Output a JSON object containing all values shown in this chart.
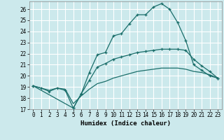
{
  "xlabel": "Humidex (Indice chaleur)",
  "bg_color": "#cce9ec",
  "grid_color": "#c0d8dc",
  "line_color": "#1a6e6a",
  "xlim_min": -0.5,
  "xlim_max": 23.5,
  "ylim_min": 17,
  "ylim_max": 26.7,
  "yticks": [
    17,
    18,
    19,
    20,
    21,
    22,
    23,
    24,
    25,
    26
  ],
  "xticks": [
    0,
    1,
    2,
    3,
    4,
    5,
    6,
    7,
    8,
    9,
    10,
    11,
    12,
    13,
    14,
    15,
    16,
    17,
    18,
    19,
    20,
    21,
    22,
    23
  ],
  "curve1_x": [
    0,
    1,
    2,
    3,
    4,
    5,
    6,
    7,
    8,
    9,
    10,
    11,
    12,
    13,
    14,
    15,
    16,
    17,
    18,
    19,
    20,
    21,
    22,
    23
  ],
  "curve1_y": [
    19.1,
    18.9,
    18.6,
    18.9,
    18.7,
    17.1,
    18.4,
    20.3,
    21.9,
    22.1,
    23.6,
    23.8,
    24.7,
    25.5,
    25.5,
    26.2,
    26.5,
    26.0,
    24.8,
    23.2,
    21.0,
    20.5,
    20.0,
    19.8
  ],
  "curve2_x": [
    0,
    5,
    6,
    7,
    8,
    9,
    10,
    11,
    12,
    13,
    14,
    15,
    16,
    17,
    18,
    19,
    20,
    21,
    22,
    23
  ],
  "curve2_y": [
    19.1,
    17.1,
    18.4,
    19.6,
    20.8,
    21.1,
    21.5,
    21.7,
    21.9,
    22.1,
    22.2,
    22.3,
    22.4,
    22.4,
    22.4,
    22.3,
    21.5,
    20.9,
    20.4,
    19.8
  ],
  "curve3_x": [
    0,
    1,
    2,
    3,
    4,
    5,
    6,
    7,
    8,
    9,
    10,
    11,
    12,
    13,
    14,
    15,
    16,
    17,
    18,
    19,
    20,
    21,
    22,
    23
  ],
  "curve3_y": [
    19.1,
    18.9,
    18.7,
    18.9,
    18.8,
    17.5,
    18.2,
    18.8,
    19.3,
    19.5,
    19.8,
    20.0,
    20.2,
    20.4,
    20.5,
    20.6,
    20.7,
    20.7,
    20.7,
    20.6,
    20.4,
    20.3,
    20.1,
    19.8
  ]
}
